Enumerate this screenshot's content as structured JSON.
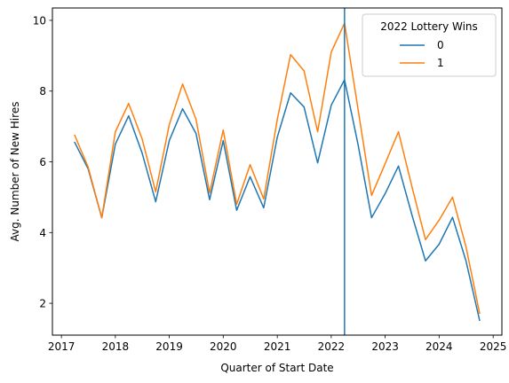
{
  "chart_data": {
    "type": "line",
    "title": "",
    "xlabel": "Quarter of Start Date",
    "ylabel": "Avg. Number of New Hires",
    "x_axis_type": "date",
    "xlim": [
      "2016-11-01",
      "2025-03-01"
    ],
    "ylim": [
      1.1,
      10.35
    ],
    "xticks": [
      {
        "label": "2017",
        "date": "2017-01-01"
      },
      {
        "label": "2018",
        "date": "2018-01-01"
      },
      {
        "label": "2019",
        "date": "2019-01-01"
      },
      {
        "label": "2020",
        "date": "2020-01-01"
      },
      {
        "label": "2021",
        "date": "2021-01-01"
      },
      {
        "label": "2022",
        "date": "2022-01-01"
      },
      {
        "label": "2023",
        "date": "2023-01-01"
      },
      {
        "label": "2024",
        "date": "2024-01-01"
      },
      {
        "label": "2025",
        "date": "2025-01-01"
      }
    ],
    "yticks": [
      2,
      4,
      6,
      8,
      10
    ],
    "grid": false,
    "legend": {
      "title": "2022 Lottery Wins",
      "placement": "top-right"
    },
    "vline": {
      "date": "2022-04-01",
      "color": "#1f77b4"
    },
    "x": [
      "2017-04-01",
      "2017-07-01",
      "2017-10-01",
      "2018-01-01",
      "2018-04-01",
      "2018-07-01",
      "2018-10-01",
      "2019-01-01",
      "2019-04-01",
      "2019-07-01",
      "2019-10-01",
      "2020-01-01",
      "2020-04-01",
      "2020-07-01",
      "2020-10-01",
      "2021-01-01",
      "2021-04-01",
      "2021-07-01",
      "2021-10-01",
      "2022-01-01",
      "2022-04-01",
      "2022-07-01",
      "2022-10-01",
      "2023-01-01",
      "2023-04-01",
      "2023-07-01",
      "2023-10-01",
      "2024-01-01",
      "2024-04-01",
      "2024-07-01",
      "2024-10-01"
    ],
    "series": [
      {
        "name": "0",
        "color": "#1f77b4",
        "values": [
          6.55,
          5.8,
          4.42,
          6.5,
          7.3,
          6.25,
          4.87,
          6.6,
          7.5,
          6.8,
          4.93,
          6.6,
          4.63,
          5.58,
          4.7,
          6.7,
          7.95,
          7.55,
          5.97,
          7.6,
          8.32,
          6.5,
          4.42,
          5.1,
          5.88,
          4.5,
          3.2,
          3.67,
          4.43,
          3.2,
          1.52
        ]
      },
      {
        "name": "1",
        "color": "#ff7f0e",
        "values": [
          6.75,
          5.85,
          4.42,
          6.85,
          7.65,
          6.65,
          5.15,
          7.05,
          8.2,
          7.2,
          5.12,
          6.9,
          4.8,
          5.92,
          4.95,
          7.2,
          9.03,
          8.57,
          6.85,
          9.1,
          9.92,
          7.5,
          5.05,
          5.95,
          6.85,
          5.3,
          3.8,
          4.35,
          5.0,
          3.6,
          1.72
        ]
      }
    ]
  }
}
